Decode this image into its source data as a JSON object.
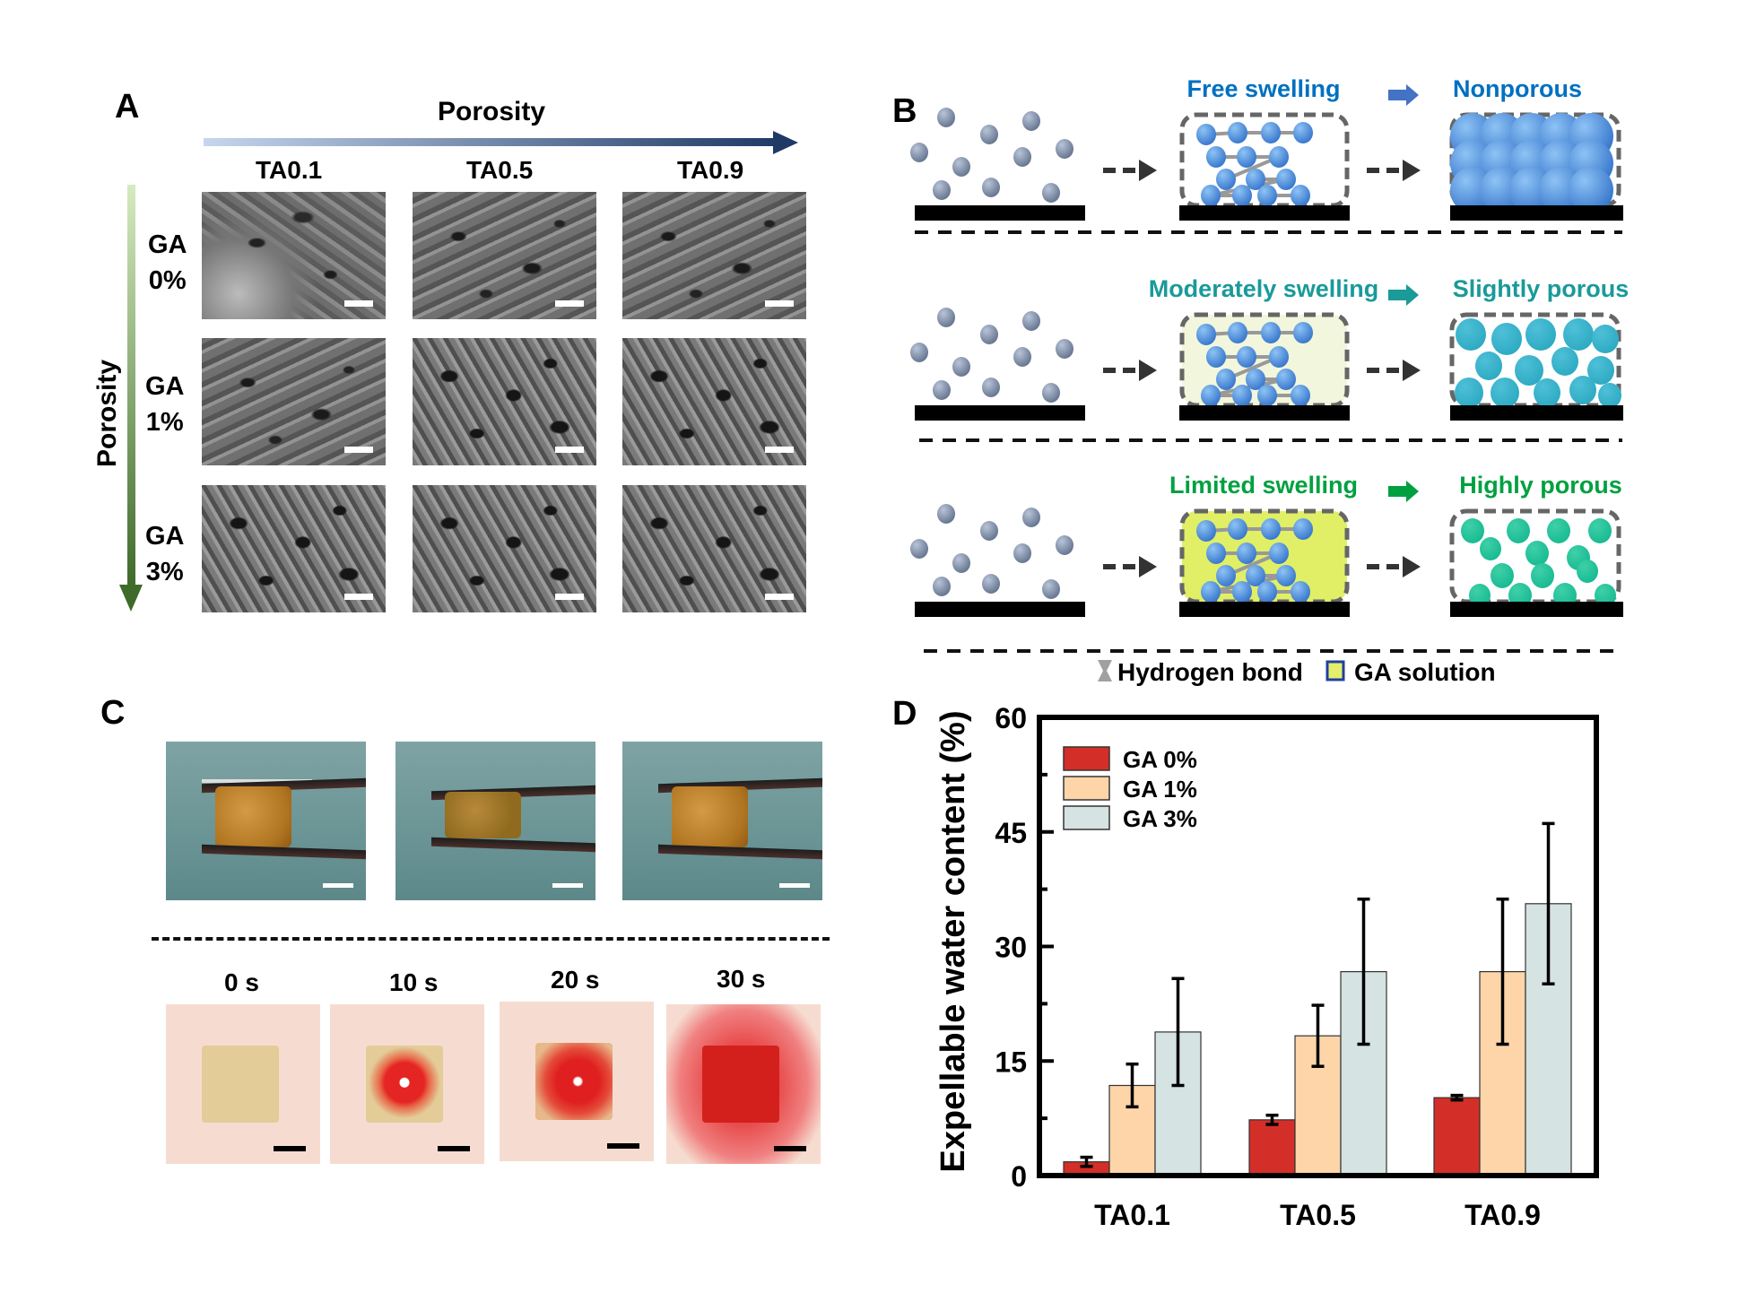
{
  "panelA": {
    "label": "A",
    "axis_top": "Porosity",
    "axis_left": "Porosity",
    "columns": [
      "TA0.1",
      "TA0.5",
      "TA0.9"
    ],
    "rows": [
      {
        "line1": "GA",
        "line2": "0%"
      },
      {
        "line1": "GA",
        "line2": "1%"
      },
      {
        "line1": "GA",
        "line2": "3%"
      }
    ]
  },
  "panelB": {
    "label": "B",
    "rows": [
      {
        "process": "Free swelling",
        "result": "Nonporous",
        "color": "#0070c0"
      },
      {
        "process": "Moderately swelling",
        "result": "Slightly porous",
        "color": "#1a9a99"
      },
      {
        "process": "Limited swelling",
        "result": "Highly porous",
        "color": "#00a040"
      }
    ],
    "legend": {
      "hydrogen_bond": "Hydrogen bond",
      "ga_solution": "GA solution"
    }
  },
  "panelC": {
    "label": "C",
    "times": [
      "0 s",
      "10 s",
      "20 s",
      "30 s"
    ]
  },
  "panelD": {
    "label": "D"
  },
  "chart_data": {
    "type": "bar",
    "title": "",
    "xlabel": "",
    "ylabel": "Expellable water content (%)",
    "categories": [
      "TA0.1",
      "TA0.5",
      "TA0.9"
    ],
    "ylim": [
      0,
      60
    ],
    "yticks": [
      0,
      15,
      30,
      45,
      60
    ],
    "legend_position": "top-left",
    "series": [
      {
        "name": "GA 0%",
        "color": "#d42e28",
        "values": [
          1.8,
          7.3,
          10.2
        ],
        "errors": [
          0.6,
          0.6,
          0.3
        ]
      },
      {
        "name": "GA 1%",
        "color": "#fdd5a9",
        "values": [
          11.8,
          18.3,
          26.7
        ],
        "errors": [
          2.8,
          4.0,
          9.5
        ]
      },
      {
        "name": "GA 3%",
        "color": "#d5e3e2",
        "values": [
          18.8,
          26.7,
          35.6
        ],
        "errors": [
          7.0,
          9.5,
          10.5
        ]
      }
    ]
  }
}
